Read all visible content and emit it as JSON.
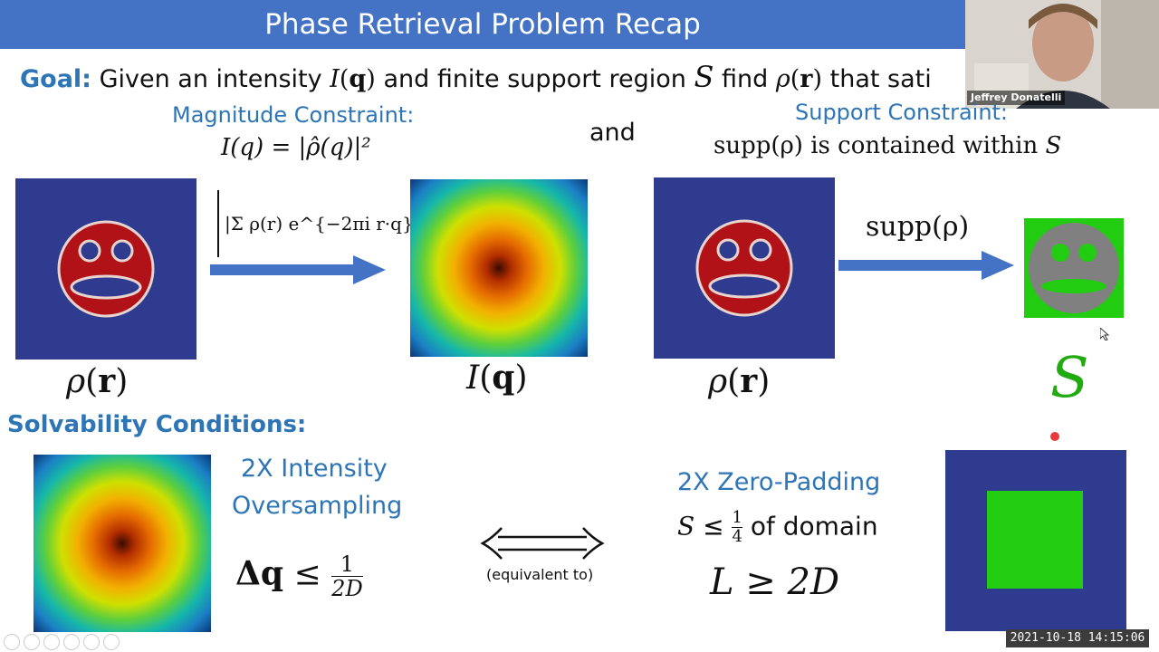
{
  "header": {
    "title": "Phase Retrieval Problem Recap",
    "presenter_name": "Jeffrey Donatelli"
  },
  "goal": {
    "label": "Goal:",
    "text_1": "Given an intensity",
    "text_2": "and finite support region",
    "text_3": "find",
    "text_4": "that sati"
  },
  "magnitude": {
    "title": "Magnitude Constraint:",
    "formula": "I(q) = |ρ̂(q)|²",
    "transform": "|Σ ρ(r) e^{−2πi r·q}|²"
  },
  "and_label": "and",
  "support": {
    "title": "Support Constraint:",
    "statement_prefix": "supp(ρ) is contained within",
    "statement_var": "S",
    "arrow_label": "supp(ρ)"
  },
  "captions": {
    "rho_1": "ρ(r)",
    "intensity": "I(q)",
    "rho_2": "ρ(r)",
    "support_set": "S"
  },
  "solvability": {
    "title": "Solvability Conditions:",
    "oversampling_line_1": "2X Intensity",
    "oversampling_line_2": "Oversampling",
    "oversampling_formula": "Δq ≤ 1/2D",
    "equivalent": "(equivalent to)",
    "padding_title": "2X Zero-Padding",
    "padding_text": "of domain",
    "padding_formula": "L ≥ 2D"
  },
  "timestamp": "2021-10-18  14:15:06",
  "colors": {
    "title_bar": "#4472c4",
    "accent_blue": "#2e75b6",
    "panel_blue": "#2f3b8f",
    "face_red": "#b01217",
    "support_green": "#22cc11",
    "support_gray": "#808080"
  }
}
